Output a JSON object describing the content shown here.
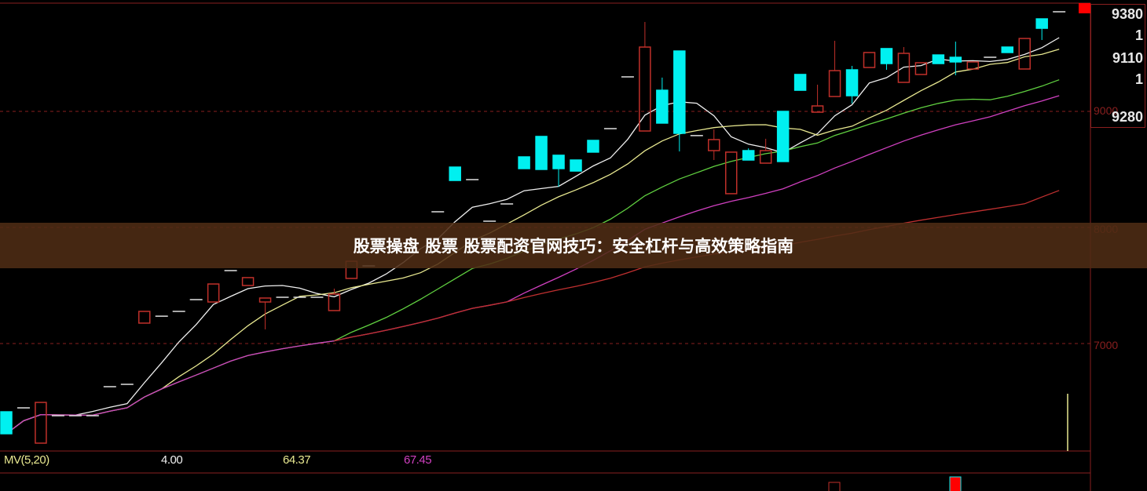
{
  "title": "股票操盘 股票 股票配资官网技巧：安全杠杆与高效策略指南",
  "right_panel": {
    "values": [
      "9380",
      "1",
      "9110",
      "1",
      "9280"
    ]
  },
  "indicator": {
    "label": "MV(5,20)",
    "v1": "4.00",
    "v2": "64.37",
    "v3": "67.45"
  },
  "colors": {
    "up": "#c0302a",
    "down": "#00f0f0",
    "ma5": "#f0f0f0",
    "ma10": "#e8e890",
    "ma20": "#60d040",
    "ma30": "#d040c0",
    "ma60": "#c03030",
    "grid": "#8a1f1f"
  },
  "chart_data": {
    "type": "candlestick",
    "ylim": [
      6000,
      9900
    ],
    "yticks": [
      "9000",
      "8000",
      "7000"
    ],
    "grid": "dashed horizontal",
    "moving_averages": [
      "ma5",
      "ma10",
      "ma20",
      "ma30",
      "ma60"
    ],
    "candles": [
      [
        6412,
        6412,
        6223,
        6223
      ],
      [
        6446,
        6446,
        6446,
        6446
      ],
      [
        6142,
        6493,
        6142,
        6493
      ],
      [
        6378,
        6378,
        6378,
        6378
      ],
      [
        6378,
        6378,
        6378,
        6378
      ],
      [
        6378,
        6378,
        6378,
        6378
      ],
      [
        6628,
        6628,
        6628,
        6628
      ],
      [
        6649,
        6649,
        6649,
        6649
      ],
      [
        7176,
        7277,
        7176,
        7277
      ],
      [
        7236,
        7236,
        7236,
        7236
      ],
      [
        7277,
        7277,
        7277,
        7277
      ],
      [
        7378,
        7378,
        7378,
        7378
      ],
      [
        7358,
        7513,
        7358,
        7513
      ],
      [
        7628,
        7628,
        7628,
        7628
      ],
      [
        7500,
        7568,
        7500,
        7568
      ],
      [
        7358,
        7392,
        7122,
        7392
      ],
      [
        7399,
        7399,
        7399,
        7399
      ],
      [
        7399,
        7399,
        7399,
        7399
      ],
      [
        7399,
        7399,
        7399,
        7399
      ],
      [
        7284,
        7473,
        7284,
        7426
      ],
      [
        7561,
        7709,
        7561,
        7709
      ],
      [
        7669,
        7669,
        7669,
        7669
      ],
      null,
      null,
      null,
      [
        8135,
        8135,
        8135,
        8135
      ],
      [
        8520,
        8520,
        8405,
        8405
      ],
      [
        8412,
        8412,
        8412,
        8412
      ],
      [
        8054,
        8054,
        8054,
        8054
      ],
      [
        8203,
        8203,
        8203,
        8203
      ],
      [
        8608,
        8608,
        8507,
        8507
      ],
      [
        8784,
        8784,
        8500,
        8500
      ],
      [
        8622,
        8622,
        8351,
        8507
      ],
      [
        8581,
        8581,
        8486,
        8486
      ],
      [
        8750,
        8750,
        8649,
        8649
      ],
      [
        8851,
        8851,
        8851,
        8851
      ],
      [
        9297,
        9297,
        9297,
        9297
      ],
      [
        8831,
        9770,
        8831,
        9554
      ],
      [
        9182,
        9291,
        8899,
        8899
      ],
      [
        9520,
        9520,
        8655,
        8811
      ],
      [
        8791,
        8791,
        8791,
        8791
      ],
      [
        8662,
        8845,
        8581,
        8757
      ],
      [
        8291,
        8649,
        8291,
        8649
      ],
      [
        8662,
        8682,
        8581,
        8581
      ],
      [
        8554,
        8764,
        8554,
        8662
      ],
      [
        9000,
        9000,
        8568,
        8568
      ],
      [
        9318,
        9318,
        9182,
        9182
      ],
      [
        8993,
        9230,
        8993,
        9047
      ],
      [
        9128,
        9608,
        9128,
        9351
      ],
      [
        9358,
        9392,
        9068,
        9135
      ],
      [
        9378,
        9507,
        9378,
        9507
      ],
      [
        9541,
        9541,
        9358,
        9412
      ],
      [
        9250,
        9554,
        9250,
        9500
      ],
      [
        9318,
        9419,
        9318,
        9419
      ],
      [
        9486,
        9486,
        9412,
        9412
      ],
      [
        9466,
        9601,
        9311,
        9426
      ],
      [
        9365,
        9426,
        9365,
        9426
      ],
      [
        9466,
        9466,
        9466,
        9466
      ],
      [
        9554,
        9554,
        9507,
        9507
      ],
      [
        9365,
        9628,
        9365,
        9628
      ],
      [
        9797,
        9797,
        9615,
        9716
      ],
      [
        9858,
        9858,
        9858,
        9858
      ]
    ]
  }
}
